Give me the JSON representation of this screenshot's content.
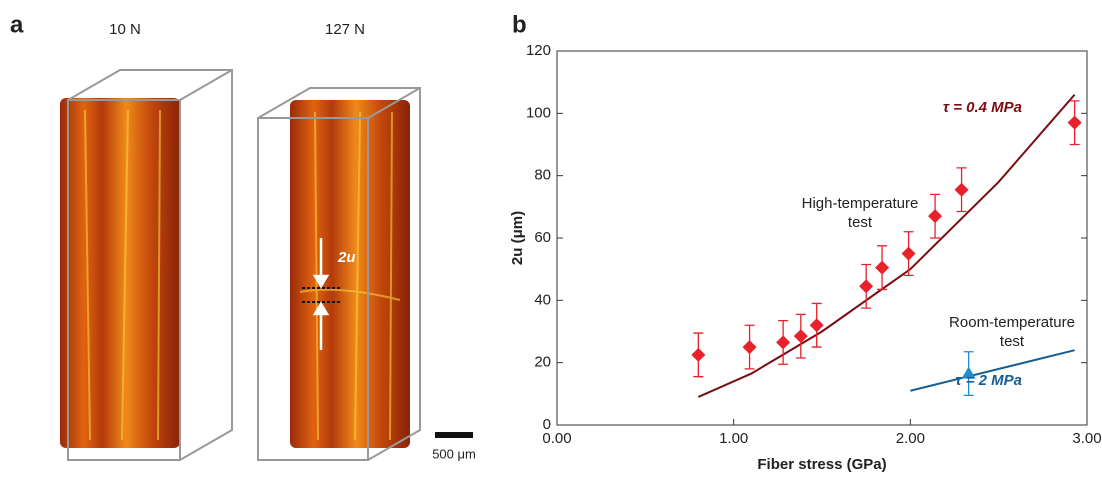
{
  "panel_a": {
    "label": "a",
    "titles": [
      "10 N",
      "127 N"
    ],
    "annotation": "2u",
    "scale_bar": "500 μm"
  },
  "chart_data": {
    "type": "scatter",
    "panel_label": "b",
    "x_label": "Fiber stress (GPa)",
    "y_label": "2u (μm)",
    "xlim": [
      0,
      3
    ],
    "xticks": [
      {
        "value": 0,
        "label": "0.00"
      },
      {
        "value": 1,
        "label": "1.00"
      },
      {
        "value": 2,
        "label": "2.00"
      },
      {
        "value": 3,
        "label": "3.00"
      }
    ],
    "ylim": [
      0,
      120
    ],
    "yticks": [
      0,
      20,
      40,
      60,
      80,
      100,
      120
    ],
    "series": [
      {
        "color": "#e8212b",
        "marker": "diamond",
        "x": [
          0.8,
          1.09,
          1.28,
          1.38,
          1.47,
          1.75,
          1.84,
          1.99,
          2.14,
          2.29,
          2.93
        ],
        "values": [
          22.5,
          25,
          26.5,
          28.5,
          32,
          44.5,
          50.5,
          55,
          67,
          75.5,
          97
        ],
        "errors": [
          7,
          7,
          7,
          7,
          7,
          7,
          7,
          7,
          7,
          7,
          7
        ]
      },
      {
        "color": "#1f8ed1",
        "marker": "triangle",
        "x": [
          2.33
        ],
        "values": [
          16.5
        ],
        "errors": [
          7
        ]
      }
    ],
    "fits": [
      {
        "label": "τ = 0.4 MPa",
        "color": "#7a0c12",
        "x": [
          0.8,
          1.1,
          1.5,
          2.0,
          2.5,
          2.93
        ],
        "values": [
          9,
          16.5,
          30,
          50,
          78,
          106
        ]
      },
      {
        "label": "τ = 2 MPa",
        "color": "#155f94",
        "x": [
          2.0,
          2.93
        ],
        "values": [
          11,
          24
        ]
      }
    ],
    "annotations": [
      [
        "High-temperature",
        "test"
      ],
      [
        "Room-temperature",
        "test"
      ]
    ]
  }
}
